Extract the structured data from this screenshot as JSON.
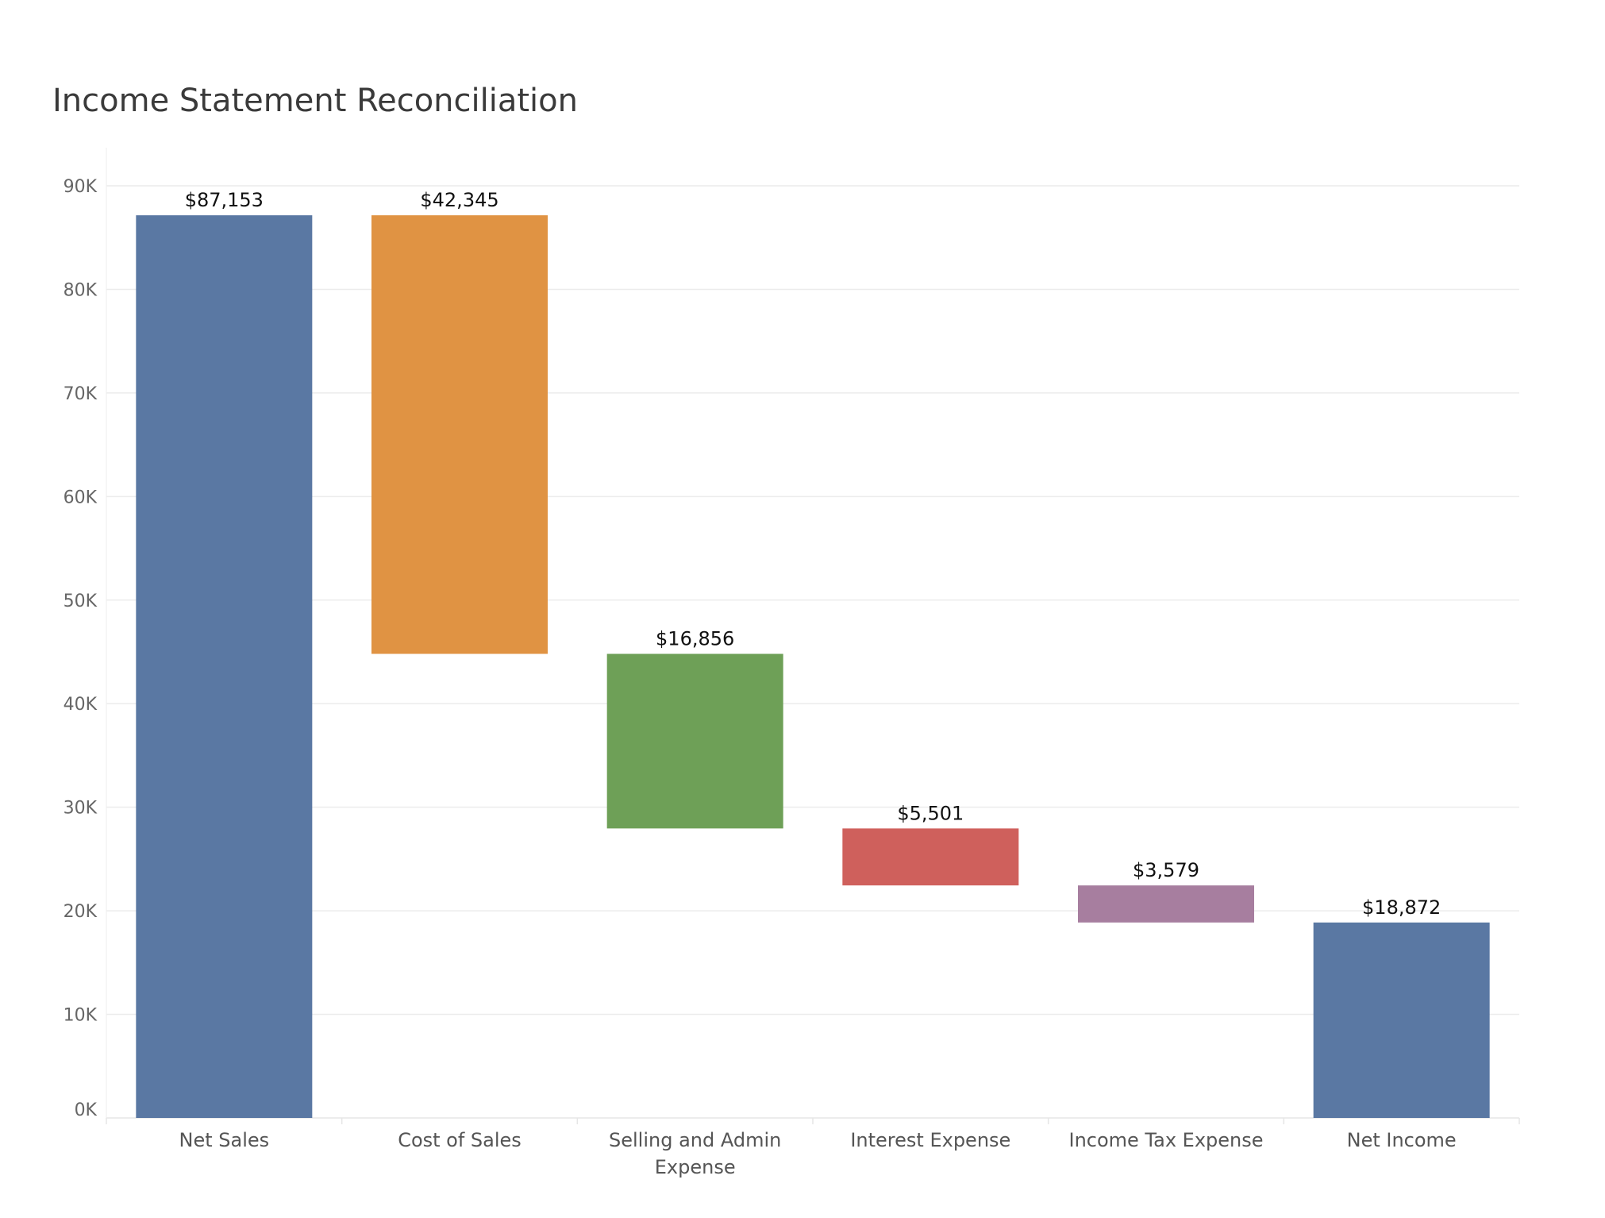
{
  "chart_data": {
    "type": "bar",
    "subtype": "waterfall",
    "title": "Income Statement Reconciliation",
    "xlabel": "",
    "ylabel": "",
    "ylim": [
      0,
      90000
    ],
    "yticks": [
      {
        "value": 0,
        "label": "0K"
      },
      {
        "value": 10000,
        "label": "10K"
      },
      {
        "value": 20000,
        "label": "20K"
      },
      {
        "value": 30000,
        "label": "30K"
      },
      {
        "value": 40000,
        "label": "40K"
      },
      {
        "value": 50000,
        "label": "50K"
      },
      {
        "value": 60000,
        "label": "60K"
      },
      {
        "value": 70000,
        "label": "70K"
      },
      {
        "value": 80000,
        "label": "80K"
      },
      {
        "value": 90000,
        "label": "90K"
      }
    ],
    "grid": true,
    "categories": [
      [
        "Net Sales"
      ],
      [
        "Cost of Sales"
      ],
      [
        "Selling and Admin",
        "Expense"
      ],
      [
        "Interest Expense"
      ],
      [
        "Income Tax Expense"
      ],
      [
        "Net Income"
      ]
    ],
    "bars": [
      {
        "category": "Net Sales",
        "start": 0,
        "end": 87153,
        "value": 87153,
        "label": "$87,153",
        "color": "#5a78a3"
      },
      {
        "category": "Cost of Sales",
        "start": 87153,
        "end": 44808,
        "value": 42345,
        "label": "$42,345",
        "color": "#e09343"
      },
      {
        "category": "Selling and Admin Expense",
        "start": 44808,
        "end": 27952,
        "value": 16856,
        "label": "$16,856",
        "color": "#6ea057"
      },
      {
        "category": "Interest Expense",
        "start": 27952,
        "end": 22451,
        "value": 5501,
        "label": "$5,501",
        "color": "#cf605c"
      },
      {
        "category": "Income Tax Expense",
        "start": 22451,
        "end": 18872,
        "value": 3579,
        "label": "$3,579",
        "color": "#a77e9f"
      },
      {
        "category": "Net Income",
        "start": 0,
        "end": 18872,
        "value": 18872,
        "label": "$18,872",
        "color": "#5a78a3"
      }
    ]
  }
}
